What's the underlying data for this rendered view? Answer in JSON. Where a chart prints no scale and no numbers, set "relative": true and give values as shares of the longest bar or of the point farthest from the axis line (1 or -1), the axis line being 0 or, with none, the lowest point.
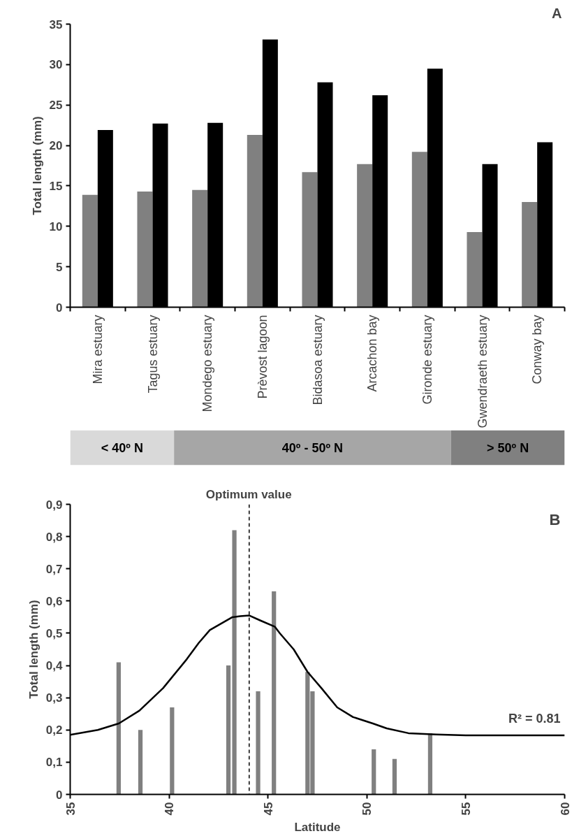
{
  "chart_data": [
    {
      "type": "bar",
      "ylabel": "Total length (mm)",
      "annotations": [
        "A"
      ],
      "categories": [
        "Mira estuary",
        "Tagus estuary",
        "Mondego estuary",
        "Prèvost lagoon",
        "Bidasoa estuary",
        "Arcachon bay",
        "Gironde estuary",
        "Gwendraeth estuary",
        "Conway bay"
      ],
      "series": [
        {
          "color": "#808080",
          "values": [
            13.9,
            14.3,
            14.5,
            21.3,
            16.7,
            17.7,
            19.2,
            9.3,
            13.0
          ]
        },
        {
          "color": "#000000",
          "values": [
            21.9,
            22.7,
            22.8,
            33.1,
            27.8,
            26.2,
            29.5,
            17.7,
            20.4
          ]
        }
      ],
      "ylim": [
        0,
        35
      ],
      "yticks": [
        0,
        5,
        10,
        15,
        20,
        25,
        30,
        35
      ],
      "grid": false
    },
    {
      "type": "bar",
      "orientation": "horizontal",
      "stacked": true,
      "relative": true,
      "categories": [
        null
      ],
      "series": [
        {
          "name": "< 40º N",
          "color": "#d9d9d9",
          "values": [
            0.21
          ]
        },
        {
          "name": "40º - 50º N",
          "color": "#a6a6a6",
          "values": [
            0.56
          ]
        },
        {
          "name": "> 50º N",
          "color": "#808080",
          "values": [
            0.23
          ]
        }
      ]
    },
    {
      "type": "bar",
      "xlabel": "Latitude",
      "ylabel": "Total length (mm)",
      "annotations": [
        "B",
        "R² = 0.81"
      ],
      "series": [
        {
          "type": "bar",
          "color": "#808080",
          "x": [
            37.45,
            38.55,
            40.15,
            43.0,
            43.3,
            44.5,
            45.3,
            47.0,
            47.25,
            50.35,
            51.4,
            53.2
          ],
          "values": [
            0.41,
            0.2,
            0.27,
            0.4,
            0.82,
            0.32,
            0.63,
            0.38,
            0.32,
            0.14,
            0.11,
            0.19
          ]
        },
        {
          "type": "line",
          "color": "#000000",
          "x": [
            35,
            36.4,
            37.46,
            38.5,
            39.7,
            40.9,
            41.5,
            42.06,
            43.2,
            43.6,
            44.06,
            44.6,
            45.35,
            45.6,
            46.3,
            47.0,
            47.7,
            48.5,
            49.3,
            50.3,
            51.0,
            52.1,
            53.5,
            55.0,
            60
          ],
          "values": [
            0.185,
            0.2,
            0.22,
            0.26,
            0.33,
            0.42,
            0.47,
            0.51,
            0.55,
            0.553,
            0.555,
            0.54,
            0.52,
            0.5,
            0.45,
            0.38,
            0.33,
            0.27,
            0.24,
            0.22,
            0.205,
            0.19,
            0.186,
            0.183,
            0.183
          ]
        }
      ],
      "xlim": [
        35,
        60
      ],
      "xticks": [
        35,
        40,
        45,
        50,
        55,
        60
      ],
      "ylim": [
        0,
        0.9
      ],
      "yticks": [
        0,
        {
          "value": 0.1,
          "label": "0,1"
        },
        {
          "value": 0.2,
          "label": "0,2"
        },
        {
          "value": 0.3,
          "label": "0,3"
        },
        {
          "value": 0.4,
          "label": "0,4"
        },
        {
          "value": 0.5,
          "label": "0,5"
        },
        {
          "value": 0.6,
          "label": "0,6"
        },
        {
          "value": 0.7,
          "label": "0,7"
        },
        {
          "value": 0.8,
          "label": "0,8"
        },
        {
          "value": 0.9,
          "label": "0,9"
        }
      ],
      "ref_lines": [
        {
          "axis": "x",
          "value": 44.05,
          "label": "Optimum value",
          "color": "#000000",
          "line_style": "dashed"
        }
      ],
      "grid": false
    }
  ]
}
